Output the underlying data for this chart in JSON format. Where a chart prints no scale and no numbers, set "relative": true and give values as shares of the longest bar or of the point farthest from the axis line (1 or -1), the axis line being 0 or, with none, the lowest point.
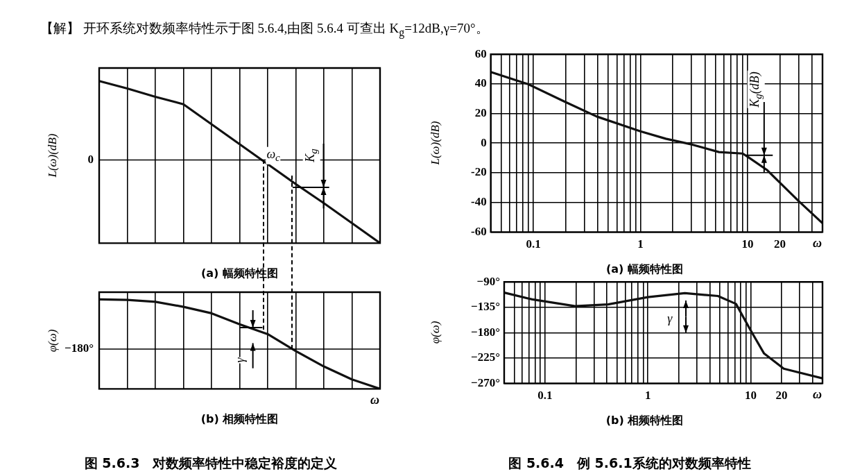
{
  "chart_data": [
    {
      "type": "other",
      "annotations": [
        "【解】 开环系统对数频率特性示于图 5.6.4,由图 5.6.4 可查出 K$_{g}$=12dB,γ=70°。"
      ]
    },
    {
      "type": "line",
      "relative": true,
      "title": "(a) 幅频特性图",
      "ylabel": "L(ω)(dB)",
      "categories": [
        null,
        null,
        null,
        null,
        null,
        null,
        null,
        null,
        null,
        null,
        null
      ],
      "values": [
        0.95,
        0.86,
        0.76,
        0.67,
        0.43,
        0.19,
        -0.05,
        -0.29,
        -0.52,
        -0.76,
        -1
      ],
      "color": "#111111",
      "grid": "x",
      "ref_lines": [
        {
          "axis": "y",
          "value": 0,
          "label": "0"
        }
      ],
      "annotations": [
        "ω$_{c}$",
        "K$_{g}$"
      ]
    },
    {
      "type": "line",
      "relative": true,
      "title": "(b) 相频特性图",
      "ylabel": "φ(ω)",
      "xlabel": "ω",
      "categories": [
        null,
        null,
        null,
        null,
        null,
        null,
        null,
        null,
        null,
        null,
        null
      ],
      "values": [
        1,
        0.99,
        0.95,
        0.85,
        0.72,
        0.5,
        0.3,
        -0.04,
        -0.35,
        -0.61,
        -0.8
      ],
      "color": "#111111",
      "grid": "x",
      "ref_lines": [
        {
          "axis": "y",
          "value": 0,
          "label": "−180°"
        }
      ],
      "annotations": [
        "γ",
        "图 5.6.3　对数频率特性中稳定裕度的定义"
      ]
    },
    {
      "type": "line",
      "title": "(a) 幅频特性图",
      "ylabel": "L(ω)(dB)",
      "xlabel": "ω",
      "log": "x",
      "x": [
        0.04,
        0.088,
        0.196,
        0.39,
        1,
        1.72,
        3.05,
        5.4,
        9,
        10.4,
        15.1,
        29.9,
        50
      ],
      "values": [
        48,
        40,
        28,
        18,
        8,
        3,
        -1,
        -6,
        -7,
        -10,
        -18,
        -39,
        -54
      ],
      "color": "#111111",
      "grid": true,
      "xlim": [
        0.04,
        50
      ],
      "ylim": [
        -60,
        60
      ],
      "yticks": [
        -60,
        -40,
        -20,
        0,
        20,
        40,
        60
      ],
      "xticks": [
        {
          "value": 0.04,
          "label": null
        },
        {
          "value": 0.05,
          "label": null
        },
        {
          "value": 0.06,
          "label": null
        },
        {
          "value": 0.07,
          "label": null
        },
        {
          "value": 0.08,
          "label": null
        },
        {
          "value": 0.09,
          "label": null
        },
        0.1,
        {
          "value": 0.2,
          "label": null
        },
        {
          "value": 0.3,
          "label": null
        },
        {
          "value": 0.4,
          "label": null
        },
        {
          "value": 0.5,
          "label": null
        },
        {
          "value": 0.6,
          "label": null
        },
        {
          "value": 0.7,
          "label": null
        },
        {
          "value": 0.8,
          "label": null
        },
        {
          "value": 0.9,
          "label": null
        },
        1,
        {
          "value": 2,
          "label": null
        },
        {
          "value": 3,
          "label": null
        },
        {
          "value": 4,
          "label": null
        },
        {
          "value": 5,
          "label": null
        },
        {
          "value": 6,
          "label": null
        },
        {
          "value": 7,
          "label": null
        },
        {
          "value": 8,
          "label": null
        },
        {
          "value": 9,
          "label": null
        },
        10,
        20,
        {
          "value": 30,
          "label": null
        },
        {
          "value": 40,
          "label": null
        },
        {
          "value": 50,
          "label": null
        }
      ],
      "annotations": [
        "K$_{g}$(dB)"
      ]
    },
    {
      "type": "line",
      "title": "(b) 相频特性图",
      "ylabel": "φ(ω)",
      "xlabel": "ω",
      "log": "x",
      "x": [
        0.04,
        0.075,
        0.196,
        0.41,
        1,
        2.29,
        4.8,
        7.2,
        10,
        13.5,
        21,
        50
      ],
      "values": [
        -109,
        -121,
        -133,
        -130,
        -117,
        -110,
        -115,
        -129,
        -176,
        -217,
        -244,
        -261
      ],
      "color": "#111111",
      "grid": true,
      "xlim": [
        0.04,
        50
      ],
      "ylim": [
        -270,
        -90
      ],
      "yticks": [
        {
          "value": -270,
          "label": "−270°"
        },
        {
          "value": -225,
          "label": "−225°"
        },
        {
          "value": -180,
          "label": "−180°"
        },
        {
          "value": -135,
          "label": "−135°"
        },
        {
          "value": -90,
          "label": "−90°"
        }
      ],
      "xticks": [
        {
          "value": 0.04,
          "label": null
        },
        {
          "value": 0.05,
          "label": null
        },
        {
          "value": 0.06,
          "label": null
        },
        {
          "value": 0.07,
          "label": null
        },
        {
          "value": 0.08,
          "label": null
        },
        {
          "value": 0.09,
          "label": null
        },
        0.1,
        {
          "value": 0.2,
          "label": null
        },
        {
          "value": 0.3,
          "label": null
        },
        {
          "value": 0.4,
          "label": null
        },
        {
          "value": 0.5,
          "label": null
        },
        {
          "value": 0.6,
          "label": null
        },
        {
          "value": 0.7,
          "label": null
        },
        {
          "value": 0.8,
          "label": null
        },
        {
          "value": 0.9,
          "label": null
        },
        1,
        {
          "value": 2,
          "label": null
        },
        {
          "value": 3,
          "label": null
        },
        {
          "value": 4,
          "label": null
        },
        {
          "value": 5,
          "label": null
        },
        {
          "value": 6,
          "label": null
        },
        {
          "value": 7,
          "label": null
        },
        {
          "value": 8,
          "label": null
        },
        {
          "value": 9,
          "label": null
        },
        10,
        20,
        {
          "value": 30,
          "label": null
        },
        {
          "value": 40,
          "label": null
        },
        {
          "value": 50,
          "label": null
        }
      ],
      "annotations": [
        "γ",
        "图 5.6.4　例 5.6.1系统的对数频率特性"
      ]
    }
  ]
}
